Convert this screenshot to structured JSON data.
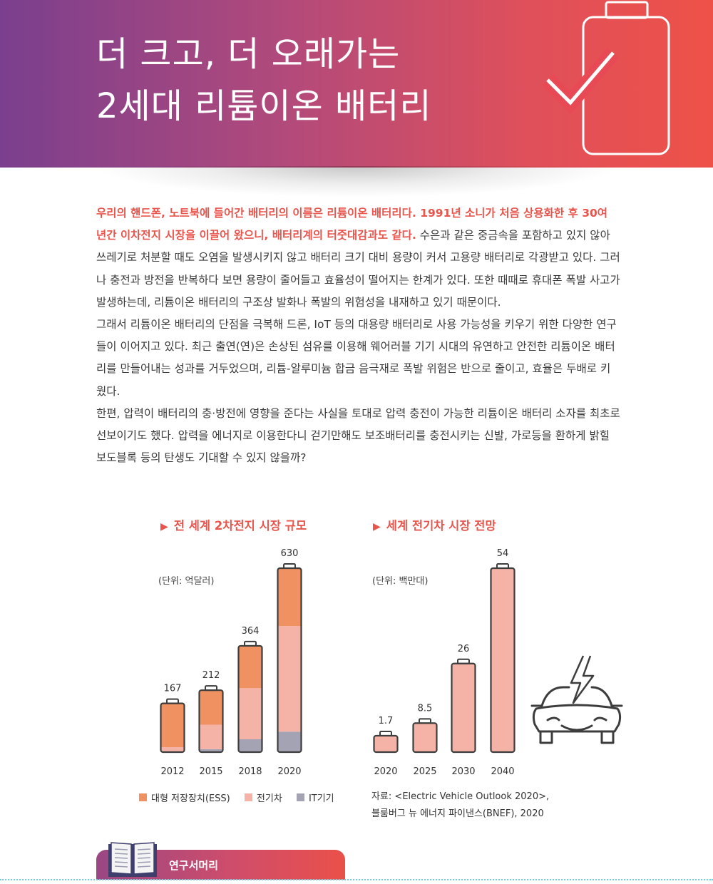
{
  "header": {
    "title_line1": "더 크고, 더 오래가는",
    "title_line2": "2세대 리튬이온 배터리"
  },
  "article": {
    "p1_highlight": "우리의 핸드폰, 노트북에 들어간 배터리의 이름은 리튬이온 배터리다. 1991년 소니가 처음 상용화한 후 30여 년간 이차전지 시장을 이끌어 왔으니, 배터리계의 터줏대감과도 같다.",
    "p1_rest": " 수은과 같은 중금속을 포함하고 있지 않아 쓰레기로 처분할 때도 오염을 발생시키지 않고 배터리 크기 대비 용량이 커서 고용량 배터리로 각광받고 있다. 그러나 충전과 방전을 반복하다 보면 용량이 줄어들고 효율성이 떨어지는 한계가 있다. 또한 때때로 휴대폰 폭발 사고가 발생하는데, 리튬이온 배터리의 구조상 발화나 폭발의 위험성을 내재하고 있기 때문이다.",
    "p2": "그래서 리튬이온 배터리의 단점을 극복해 드론, IoT 등의 대용량 배터리로 사용 가능성을 키우기 위한 다양한 연구들이 이어지고 있다. 최근 출연(연)은 손상된 섬유를 이용해 웨어러블 기기 시대의 유연하고 안전한 리튬이온 배터리를 만들어내는 성과를 거두었으며, 리튬-알루미늄 합금 음극재로 폭발 위험은 반으로 줄이고, 효율은 두배로 키웠다.",
    "p3": "한편, 압력이 배터리의 충·방전에 영향을 준다는 사실을 토대로 압력 충전이 가능한 리튬이온 배터리 소자를 최초로 선보이기도 했다. 압력을 에너지로 이용한다니 걷기만해도 보조배터리를 충전시키는 신발, 가로등을 환하게 밝힐 보도블록 등의 탄생도 기대할 수 있지 않을까?"
  },
  "colors": {
    "accent": "#e8554d",
    "ess": "#ef9160",
    "ev": "#f5b2a6",
    "it": "#a3a3b3",
    "outline": "#3d3d3d"
  },
  "icons": {
    "header": "battery-check-icon",
    "car": "electric-car-icon",
    "footer": "open-book-icon"
  },
  "chart_data": [
    {
      "type": "bar",
      "stacked": true,
      "title": "전 세계 2차전지 시장 규모",
      "unit_label": "(단위: 억달러)",
      "categories": [
        "2012",
        "2015",
        "2018",
        "2020"
      ],
      "totals": [
        "167",
        "212",
        "364",
        "630"
      ],
      "series": [
        {
          "name": "대형 저장장치(ESS)",
          "values": [
            150,
            118,
            145,
            198
          ]
        },
        {
          "name": "전기차",
          "values": [
            17,
            84,
            175,
            362
          ]
        },
        {
          "name": "IT기기",
          "values": [
            0,
            10,
            44,
            70
          ]
        }
      ],
      "ylim": [
        0,
        630
      ]
    },
    {
      "type": "bar",
      "title": "세계 전기차 시장 전망",
      "unit_label": "(단위: 백만대)",
      "categories": [
        "2020",
        "2025",
        "2030",
        "2040"
      ],
      "values": [
        1.7,
        8.5,
        26,
        54
      ],
      "value_labels": [
        "1.7",
        "8.5",
        "26",
        "54"
      ],
      "ylim": [
        0,
        54
      ]
    }
  ],
  "legend": {
    "ess": "대형 저장장치(ESS)",
    "ev": "전기차",
    "it": "IT기기"
  },
  "source": {
    "line1": "자료: <Electric Vehicle Outlook 2020>,",
    "line2": "블룸버그 뉴 에너지 파이낸스(BNEF), 2020"
  },
  "footer": {
    "section_label": "연구서머리"
  }
}
